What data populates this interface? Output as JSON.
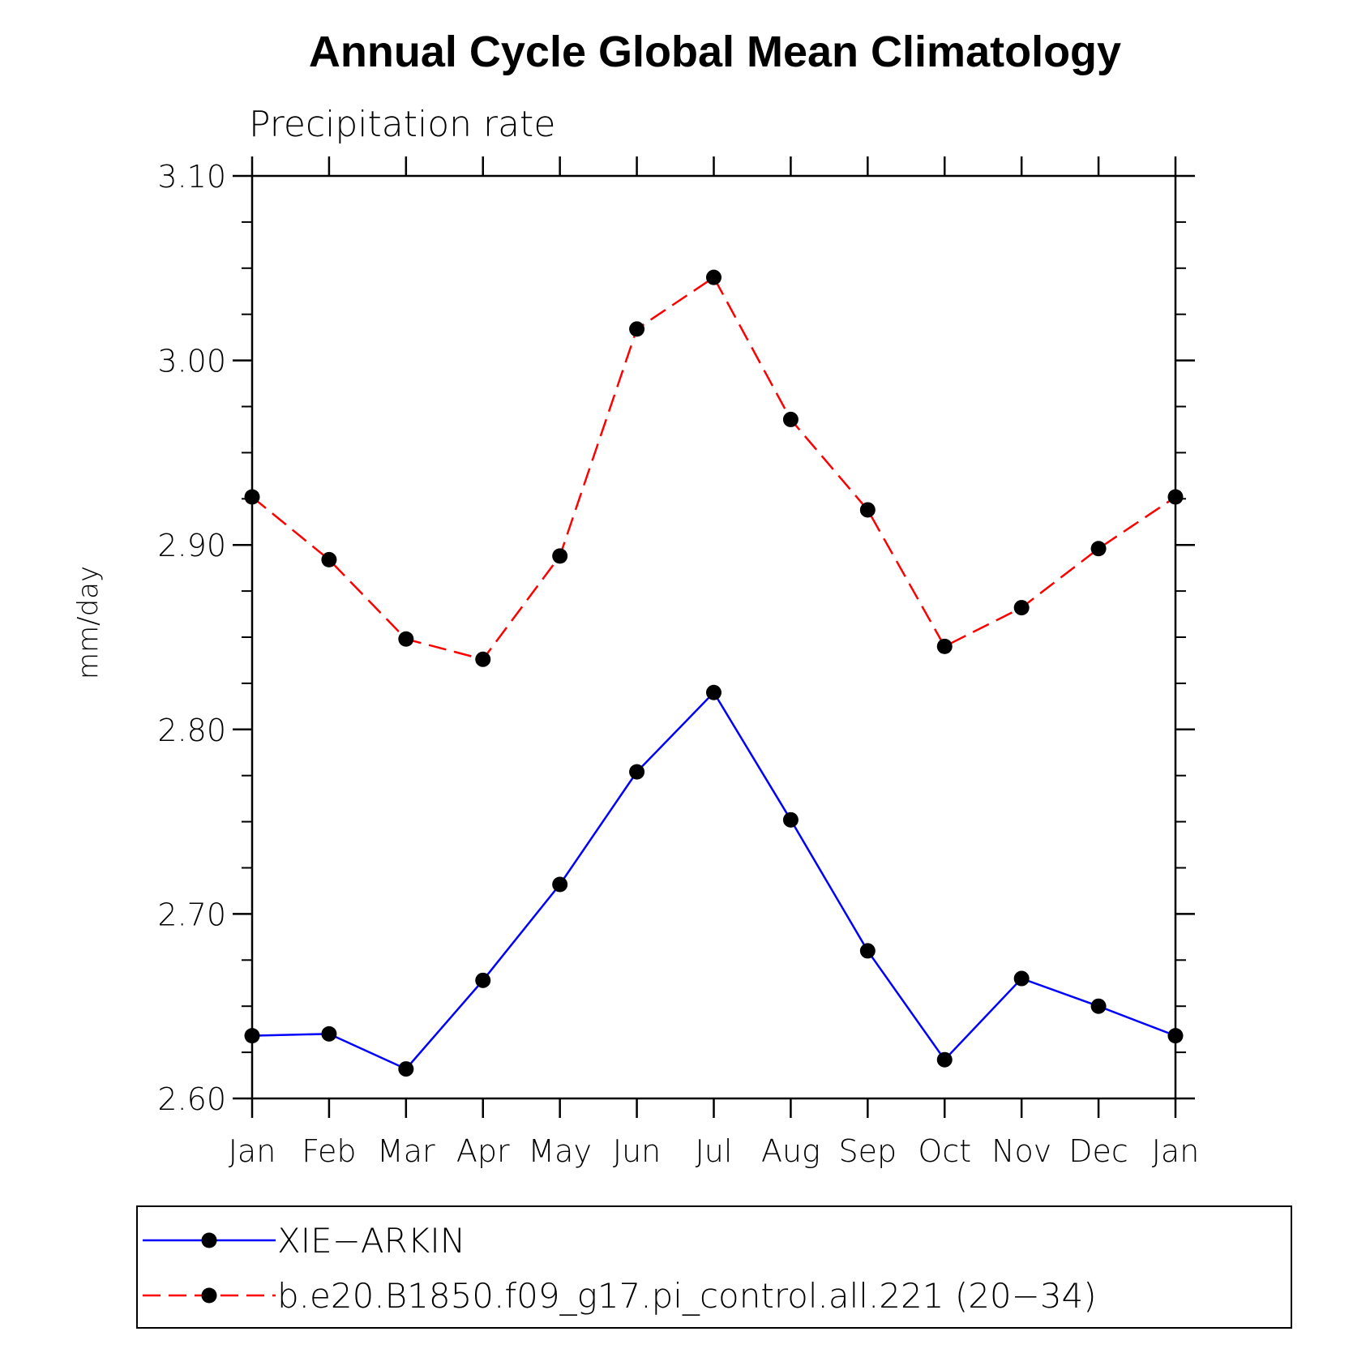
{
  "chart_data": {
    "type": "line",
    "title": "Annual Cycle Global Mean Climatology",
    "subtitle": "Precipitation rate",
    "ylabel": "mm/day",
    "xlabel": "",
    "categories": [
      "Jan",
      "Feb",
      "Mar",
      "Apr",
      "May",
      "Jun",
      "Jul",
      "Aug",
      "Sep",
      "Oct",
      "Nov",
      "Dec",
      "Jan"
    ],
    "ylim": [
      2.6,
      3.1
    ],
    "yticks": [
      "2.60",
      "2.70",
      "2.80",
      "2.90",
      "3.00",
      "3.10"
    ],
    "grid": false,
    "legend_position": "bottom",
    "series": [
      {
        "name": "XIE−ARKIN",
        "color": "#0000ff",
        "line_style": "solid",
        "marker": "filled-circle",
        "values": [
          2.634,
          2.635,
          2.616,
          2.664,
          2.716,
          2.777,
          2.82,
          2.751,
          2.68,
          2.621,
          2.665,
          2.65,
          2.634
        ]
      },
      {
        "name": "b.e20.B1850.f09_g17.pi_control.all.221 (20−34)",
        "color": "#ff0000",
        "line_style": "dashed",
        "marker": "filled-circle",
        "values": [
          2.926,
          2.892,
          2.849,
          2.838,
          2.894,
          3.017,
          3.045,
          2.968,
          2.919,
          2.845,
          2.866,
          2.898,
          2.926
        ]
      }
    ]
  }
}
